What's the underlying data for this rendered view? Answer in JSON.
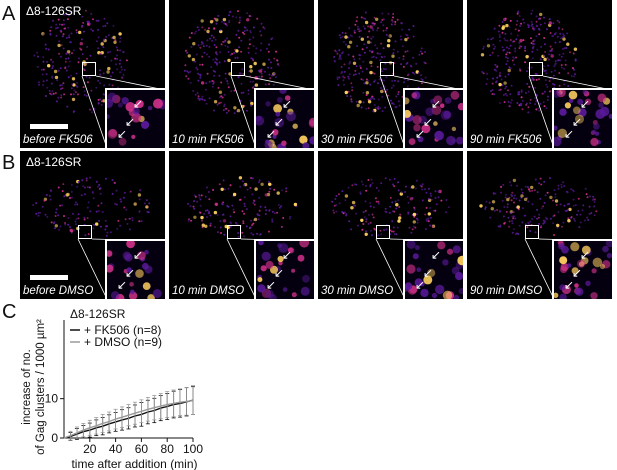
{
  "panels": {
    "A": {
      "letter": "A",
      "construct": "Δ8-126SR",
      "tiles": [
        {
          "label": "before FK506"
        },
        {
          "label": "10 min FK506"
        },
        {
          "label": "30 min FK506"
        },
        {
          "label": "90 min FK506"
        }
      ]
    },
    "B": {
      "letter": "B",
      "construct": "Δ8-126SR",
      "tiles": [
        {
          "label": "before DMSO"
        },
        {
          "label": "10 min DMSO"
        },
        {
          "label": "30 min DMSO"
        },
        {
          "label": "90 min DMSO"
        }
      ]
    },
    "C": {
      "letter": "C"
    }
  },
  "colors": {
    "fk506_series": "#111111",
    "dmso_series": "#9a9a9a",
    "hot_low": "#5a1a9a",
    "hot_mid": "#d0308a",
    "hot_high": "#ffd060"
  },
  "chart_data": {
    "type": "line",
    "title": "Δ8-126SR",
    "xlabel": "time after addition (min)",
    "ylabel_line1": "increase of no.",
    "ylabel_line2": "of Gag clusters / 1000 µm²",
    "xlim": [
      0,
      100
    ],
    "ylim": [
      0,
      30
    ],
    "xticks": [
      20,
      40,
      60,
      80,
      100
    ],
    "yticks": [
      0,
      10
    ],
    "legend_position": "top-left",
    "series": [
      {
        "name": "+ FK506 (n=8)",
        "color": "#111111",
        "x": [
          0,
          5,
          10,
          15,
          20,
          25,
          30,
          35,
          40,
          45,
          50,
          55,
          60,
          65,
          70,
          75,
          80,
          85,
          90,
          95,
          100
        ],
        "y": [
          0,
          0.4,
          1.0,
          1.6,
          2.0,
          2.6,
          3.0,
          3.6,
          4.1,
          4.6,
          5.0,
          5.6,
          6.0,
          6.6,
          7.0,
          7.6,
          8.0,
          8.5,
          8.8,
          9.2,
          9.6
        ],
        "err": [
          0,
          1.0,
          1.4,
          1.6,
          1.8,
          2.0,
          2.2,
          2.3,
          2.4,
          2.6,
          2.7,
          2.8,
          3.0,
          3.0,
          3.1,
          3.2,
          3.3,
          3.4,
          3.5,
          3.6,
          3.6
        ]
      },
      {
        "name": "+ DMSO (n=9)",
        "color": "#9a9a9a",
        "x": [
          0,
          5,
          10,
          15,
          20,
          25,
          30,
          35,
          40,
          45,
          50,
          55,
          60,
          65,
          70,
          75,
          80,
          85,
          90,
          95,
          100
        ],
        "y": [
          0,
          0.6,
          1.3,
          2.0,
          2.6,
          3.1,
          3.7,
          4.2,
          4.8,
          5.3,
          5.8,
          6.3,
          6.8,
          7.3,
          7.7,
          8.1,
          8.5,
          8.8,
          9.1,
          9.3,
          9.5
        ],
        "err": [
          0,
          1.1,
          1.5,
          1.7,
          1.9,
          2.1,
          2.3,
          2.4,
          2.5,
          2.6,
          2.7,
          2.8,
          2.9,
          3.0,
          3.1,
          3.2,
          3.3,
          3.4,
          3.4,
          3.5,
          3.5
        ]
      }
    ]
  }
}
